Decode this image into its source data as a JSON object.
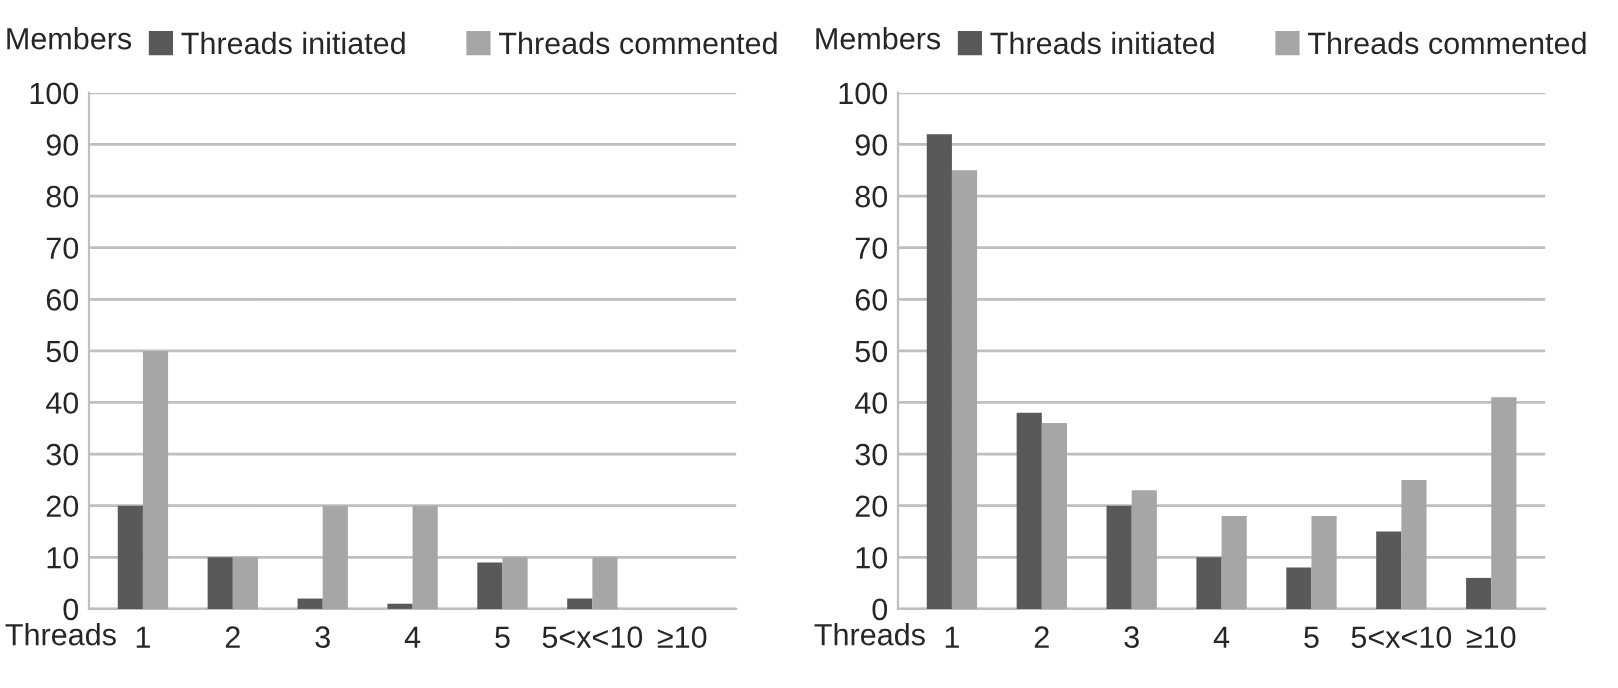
{
  "chart_data": [
    {
      "type": "bar",
      "xlabel": "Threads",
      "ylabel": "Members",
      "categories": [
        "1",
        "2",
        "3",
        "4",
        "5",
        "5<x<10",
        "≥10"
      ],
      "series": [
        {
          "name": "Threads initiated",
          "color": "#595959",
          "values": [
            20,
            10,
            2,
            1,
            9,
            2,
            null
          ]
        },
        {
          "name": "Threads commented",
          "color": "#a6a6a6",
          "values": [
            50,
            10,
            20,
            20,
            10,
            10,
            null
          ]
        }
      ],
      "ylim": [
        0,
        100
      ],
      "yticks": [
        0,
        10,
        20,
        30,
        40,
        50,
        60,
        70,
        80,
        90,
        100
      ],
      "grid": "y",
      "legend": "top"
    },
    {
      "type": "bar",
      "xlabel": "Threads",
      "ylabel": "Members",
      "categories": [
        "1",
        "2",
        "3",
        "4",
        "5",
        "5<x<10",
        "≥10"
      ],
      "series": [
        {
          "name": "Threads initiated",
          "color": "#595959",
          "values": [
            92,
            38,
            20,
            10,
            8,
            15,
            6
          ]
        },
        {
          "name": "Threads commented",
          "color": "#a6a6a6",
          "values": [
            85,
            36,
            23,
            18,
            18,
            25,
            41
          ]
        }
      ],
      "ylim": [
        0,
        100
      ],
      "yticks": [
        0,
        10,
        20,
        30,
        40,
        50,
        60,
        70,
        80,
        90,
        100
      ],
      "grid": "y",
      "legend": "top"
    }
  ]
}
